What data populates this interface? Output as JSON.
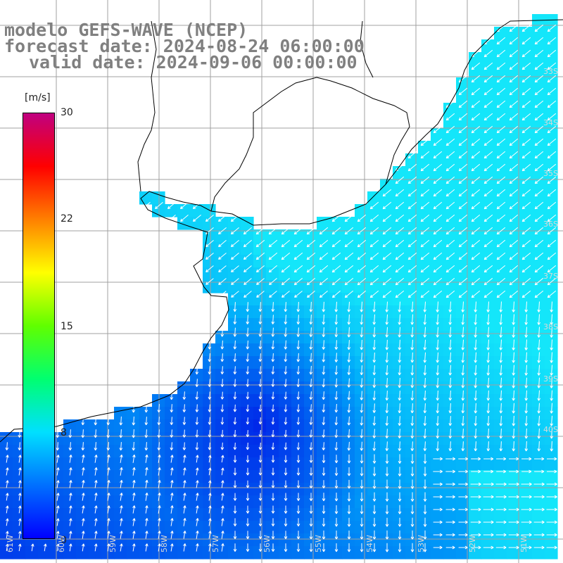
{
  "header": {
    "title": "modelo GEFS-WAVE (NCEP)",
    "forecast": "forecast date: 2024-08-24 06:00:00",
    "valid": "valid date: 2024-09-06 00:00:00"
  },
  "colorbar": {
    "unit": "[m/s]",
    "min": 0,
    "max": 30,
    "ticks": [
      "30",
      "22",
      "15",
      "8",
      "0"
    ],
    "colors": [
      "#0000ff",
      "#0070ff",
      "#00e0ff",
      "#00ff70",
      "#60ff00",
      "#ffff00",
      "#ff8000",
      "#ff0000",
      "#c00080"
    ]
  },
  "map": {
    "latitude_labels": [
      "33S",
      "34S",
      "35S",
      "36S",
      "37S",
      "38S",
      "39S",
      "40S"
    ],
    "longitude_labels": [
      "61W",
      "60W",
      "59W",
      "58W",
      "57W",
      "56W",
      "55W",
      "54W",
      "53W",
      "52W",
      "51W"
    ],
    "land_color": "#ffffff",
    "grid_color": "#a0a0a0",
    "vector_color": "#ffffff"
  }
}
